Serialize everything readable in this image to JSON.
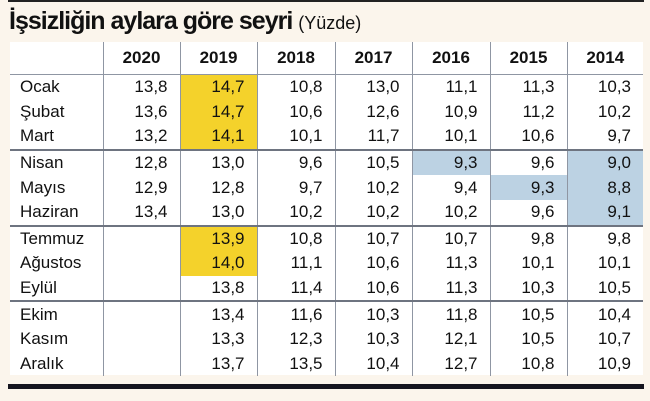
{
  "title": "İşsizliğin aylara göre seyri",
  "subtitle": "(Yüzde)",
  "colors": {
    "highlight_yellow": "#f4d22b",
    "highlight_blue": "#bcd2e3"
  },
  "table": {
    "columns": [
      "",
      "2020",
      "2019",
      "2018",
      "2017",
      "2016",
      "2015",
      "2014"
    ],
    "rows": [
      {
        "month": "Ocak",
        "values": [
          "13,8",
          "14,7",
          "10,8",
          "13,0",
          "11,1",
          "11,3",
          "10,3"
        ],
        "hl": [
          "",
          "y",
          "",
          "",
          "",
          "",
          ""
        ]
      },
      {
        "month": "Şubat",
        "values": [
          "13,6",
          "14,7",
          "10,6",
          "12,6",
          "10,9",
          "11,2",
          "10,2"
        ],
        "hl": [
          "",
          "y",
          "",
          "",
          "",
          "",
          ""
        ]
      },
      {
        "month": "Mart",
        "values": [
          "13,2",
          "14,1",
          "10,1",
          "11,7",
          "10,1",
          "10,6",
          "9,7"
        ],
        "hl": [
          "",
          "y",
          "",
          "",
          "",
          "",
          ""
        ]
      },
      {
        "month": "Nisan",
        "values": [
          "12,8",
          "13,0",
          "9,6",
          "10,5",
          "9,3",
          "9,6",
          "9,0"
        ],
        "hl": [
          "",
          "",
          "",
          "",
          "b",
          "",
          "b"
        ]
      },
      {
        "month": "Mayıs",
        "values": [
          "12,9",
          "12,8",
          "9,7",
          "10,2",
          "9,4",
          "9,3",
          "8,8"
        ],
        "hl": [
          "",
          "",
          "",
          "",
          "",
          "b",
          "b"
        ]
      },
      {
        "month": "Haziran",
        "values": [
          "13,4",
          "13,0",
          "10,2",
          "10,2",
          "10,2",
          "9,6",
          "9,1"
        ],
        "hl": [
          "",
          "",
          "",
          "",
          "",
          "",
          "b"
        ]
      },
      {
        "month": "Temmuz",
        "values": [
          "",
          "13,9",
          "10,8",
          "10,7",
          "10,7",
          "9,8",
          "9,8"
        ],
        "hl": [
          "",
          "y",
          "",
          "",
          "",
          "",
          ""
        ]
      },
      {
        "month": "Ağustos",
        "values": [
          "",
          "14,0",
          "11,1",
          "10,6",
          "11,3",
          "10,1",
          "10,1"
        ],
        "hl": [
          "",
          "y",
          "",
          "",
          "",
          "",
          ""
        ]
      },
      {
        "month": "Eylül",
        "values": [
          "",
          "13,8",
          "11,4",
          "10,6",
          "11,3",
          "10,3",
          "10,5"
        ],
        "hl": [
          "",
          "",
          "",
          "",
          "",
          "",
          ""
        ]
      },
      {
        "month": "Ekim",
        "values": [
          "",
          "13,4",
          "11,6",
          "10,3",
          "11,8",
          "10,5",
          "10,4"
        ],
        "hl": [
          "",
          "",
          "",
          "",
          "",
          "",
          ""
        ]
      },
      {
        "month": "Kasım",
        "values": [
          "",
          "13,3",
          "12,3",
          "10,3",
          "12,1",
          "10,5",
          "10,7"
        ],
        "hl": [
          "",
          "",
          "",
          "",
          "",
          "",
          ""
        ]
      },
      {
        "month": "Aralık",
        "values": [
          "",
          "13,7",
          "13,5",
          "10,4",
          "12,7",
          "10,8",
          "10,9"
        ],
        "hl": [
          "",
          "",
          "",
          "",
          "",
          "",
          ""
        ]
      }
    ]
  }
}
